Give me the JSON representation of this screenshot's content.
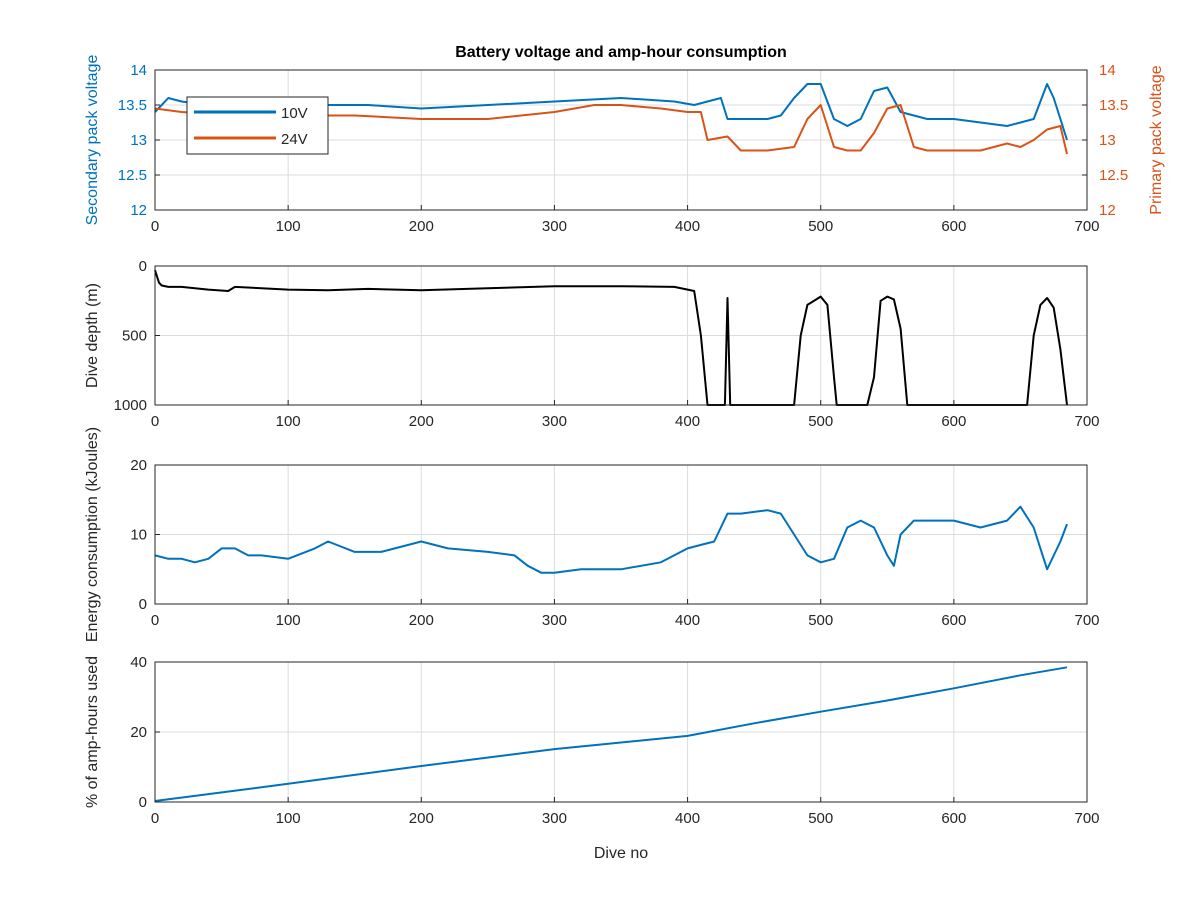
{
  "figure": {
    "title": "Battery voltage and amp-hour consumption",
    "xlabel": "Dive no"
  },
  "colors": {
    "series_10v": "#0072BD",
    "series_24v": "#D95319",
    "depth": "#000000",
    "energy": "#0072BD",
    "amphours": "#0072BD"
  },
  "chart_data": [
    {
      "type": "line",
      "title": "Battery voltage and amp-hour consumption",
      "xlabel": "",
      "ylabel_left": "Secondary pack voltage",
      "ylabel_right": "Primary pack voltage",
      "xlim": [
        0,
        700
      ],
      "ylim": [
        12,
        14
      ],
      "ylim_right": [
        12,
        14
      ],
      "xticks": [
        0,
        100,
        200,
        300,
        400,
        500,
        600,
        700
      ],
      "yticks": [
        12,
        12.5,
        13,
        13.5,
        14
      ],
      "yticks_right": [
        12,
        12.5,
        13,
        13.5,
        14
      ],
      "grid": true,
      "legend": "top-left",
      "series": [
        {
          "name": "10V",
          "color": "#0072BD",
          "axis": "left",
          "x": [
            0,
            5,
            10,
            20,
            40,
            60,
            80,
            100,
            130,
            160,
            200,
            250,
            300,
            350,
            390,
            405,
            415,
            425,
            430,
            440,
            460,
            470,
            480,
            490,
            500,
            510,
            520,
            530,
            540,
            550,
            560,
            570,
            580,
            600,
            620,
            640,
            660,
            665,
            670,
            675,
            680,
            685
          ],
          "y": [
            13.4,
            13.5,
            13.6,
            13.55,
            13.5,
            13.55,
            13.5,
            13.55,
            13.5,
            13.5,
            13.45,
            13.5,
            13.55,
            13.6,
            13.55,
            13.5,
            13.55,
            13.6,
            13.3,
            13.3,
            13.3,
            13.35,
            13.6,
            13.8,
            13.8,
            13.3,
            13.2,
            13.3,
            13.7,
            13.75,
            13.4,
            13.35,
            13.3,
            13.3,
            13.25,
            13.2,
            13.3,
            13.55,
            13.8,
            13.6,
            13.3,
            13.0
          ]
        },
        {
          "name": "24V",
          "color": "#D95319",
          "axis": "right",
          "x": [
            0,
            20,
            60,
            100,
            150,
            200,
            250,
            300,
            330,
            350,
            380,
            400,
            410,
            415,
            430,
            440,
            460,
            480,
            490,
            500,
            510,
            520,
            530,
            540,
            550,
            560,
            570,
            580,
            600,
            620,
            640,
            650,
            660,
            670,
            680,
            685
          ],
          "y": [
            13.45,
            13.4,
            13.35,
            13.35,
            13.35,
            13.3,
            13.3,
            13.4,
            13.5,
            13.5,
            13.45,
            13.4,
            13.4,
            13.0,
            13.05,
            12.85,
            12.85,
            12.9,
            13.3,
            13.5,
            12.9,
            12.85,
            12.85,
            13.1,
            13.45,
            13.5,
            12.9,
            12.85,
            12.85,
            12.85,
            12.95,
            12.9,
            13.0,
            13.15,
            13.2,
            12.8
          ]
        }
      ]
    },
    {
      "type": "line",
      "xlabel": "",
      "ylabel": "Dive depth (m)",
      "xlim": [
        0,
        700
      ],
      "ylim": [
        0,
        1000
      ],
      "y_reversed": true,
      "xticks": [
        0,
        100,
        200,
        300,
        400,
        500,
        600,
        700
      ],
      "yticks": [
        0,
        500,
        1000
      ],
      "grid": true,
      "series": [
        {
          "color": "#000000",
          "x": [
            0,
            3,
            5,
            10,
            20,
            40,
            55,
            60,
            80,
            100,
            130,
            160,
            200,
            250,
            300,
            350,
            390,
            400,
            405,
            410,
            415,
            425,
            428,
            430,
            432,
            435,
            440,
            460,
            475,
            480,
            485,
            490,
            500,
            505,
            510,
            512,
            520,
            535,
            540,
            545,
            550,
            555,
            560,
            565,
            580,
            620,
            655,
            660,
            665,
            670,
            675,
            680,
            685
          ],
          "y": [
            30,
            120,
            140,
            150,
            150,
            170,
            180,
            150,
            160,
            170,
            175,
            165,
            175,
            160,
            145,
            145,
            150,
            170,
            180,
            500,
            1000,
            1000,
            1000,
            230,
            1000,
            1000,
            1000,
            1000,
            1000,
            1000,
            500,
            280,
            220,
            280,
            800,
            1000,
            1000,
            1000,
            800,
            250,
            220,
            240,
            450,
            1000,
            1000,
            1000,
            1000,
            500,
            280,
            230,
            300,
            600,
            1000
          ]
        }
      ]
    },
    {
      "type": "line",
      "xlabel": "",
      "ylabel": "Energy consumption (kJoules)",
      "xlim": [
        0,
        700
      ],
      "ylim": [
        0,
        20
      ],
      "xticks": [
        0,
        100,
        200,
        300,
        400,
        500,
        600,
        700
      ],
      "yticks": [
        0,
        10,
        20
      ],
      "grid": true,
      "series": [
        {
          "color": "#0072BD",
          "x": [
            0,
            10,
            20,
            30,
            40,
            50,
            60,
            70,
            80,
            100,
            120,
            130,
            150,
            170,
            200,
            220,
            250,
            270,
            280,
            290,
            300,
            320,
            350,
            380,
            400,
            410,
            420,
            430,
            440,
            460,
            470,
            480,
            490,
            500,
            510,
            520,
            530,
            540,
            550,
            555,
            560,
            570,
            580,
            600,
            620,
            640,
            650,
            660,
            670,
            680,
            685
          ],
          "y": [
            7,
            6.5,
            6.5,
            6,
            6.5,
            8,
            8,
            7,
            7,
            6.5,
            8,
            9,
            7.5,
            7.5,
            9,
            8,
            7.5,
            7,
            5.5,
            4.5,
            4.5,
            5,
            5,
            6,
            8,
            8.5,
            9,
            13,
            13,
            13.5,
            13,
            10,
            7,
            6,
            6.5,
            11,
            12,
            11,
            7,
            5.5,
            10,
            12,
            12,
            12,
            11,
            12,
            14,
            11,
            5,
            9,
            11.5
          ]
        }
      ]
    },
    {
      "type": "line",
      "xlabel": "Dive no",
      "ylabel": "% of amp-hours used",
      "xlim": [
        0,
        700
      ],
      "ylim": [
        0,
        40
      ],
      "xticks": [
        0,
        100,
        200,
        300,
        400,
        500,
        600,
        700
      ],
      "yticks": [
        0,
        20,
        40
      ],
      "grid": true,
      "series": [
        {
          "color": "#0072BD",
          "x": [
            0,
            100,
            200,
            300,
            400,
            450,
            500,
            550,
            600,
            650,
            685
          ],
          "y": [
            0.3,
            5.2,
            10.3,
            15.1,
            18.9,
            22.5,
            25.8,
            29.0,
            32.5,
            36.2,
            38.5
          ]
        }
      ]
    }
  ]
}
